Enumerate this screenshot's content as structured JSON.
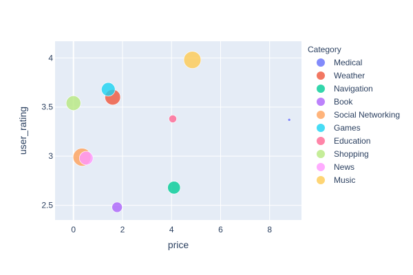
{
  "chart_data": {
    "type": "scatter",
    "xlabel": "price",
    "ylabel": "user_rating",
    "xlim": [
      -0.75,
      9.3
    ],
    "ylim": [
      2.35,
      4.17
    ],
    "xticks": [
      0,
      2,
      4,
      6,
      8
    ],
    "yticks": [
      2.5,
      3,
      3.5,
      4
    ],
    "ytick_labels": [
      "2.5",
      "3",
      "3.5",
      "4"
    ],
    "grid": true,
    "legend": {
      "title": "Category",
      "position": "right"
    },
    "series": [
      {
        "name": "Medical",
        "color": "#636efa",
        "points": [
          {
            "x": 8.8,
            "y": 3.37,
            "size": 0.3
          }
        ]
      },
      {
        "name": "Weather",
        "color": "#ef553b",
        "points": [
          {
            "x": 1.6,
            "y": 3.6,
            "size": 9
          }
        ]
      },
      {
        "name": "Navigation",
        "color": "#00cc96",
        "points": [
          {
            "x": 4.1,
            "y": 2.68,
            "size": 6
          }
        ]
      },
      {
        "name": "Book",
        "color": "#ab63fa",
        "points": [
          {
            "x": 1.78,
            "y": 2.48,
            "size": 4
          }
        ]
      },
      {
        "name": "Social Networking",
        "color": "#ffa15a",
        "points": [
          {
            "x": 0.35,
            "y": 2.99,
            "size": 12
          }
        ]
      },
      {
        "name": "Games",
        "color": "#19d3f3",
        "points": [
          {
            "x": 1.42,
            "y": 3.68,
            "size": 7
          }
        ]
      },
      {
        "name": "Education",
        "color": "#ff6692",
        "points": [
          {
            "x": 4.05,
            "y": 3.38,
            "size": 2.2
          }
        ]
      },
      {
        "name": "Shopping",
        "color": "#b6e880",
        "points": [
          {
            "x": 0.0,
            "y": 3.54,
            "size": 8
          }
        ]
      },
      {
        "name": "News",
        "color": "#ff97ff",
        "points": [
          {
            "x": 0.52,
            "y": 2.98,
            "size": 7
          }
        ]
      },
      {
        "name": "Music",
        "color": "#fecb52",
        "points": [
          {
            "x": 4.85,
            "y": 3.98,
            "size": 11
          }
        ]
      }
    ]
  }
}
